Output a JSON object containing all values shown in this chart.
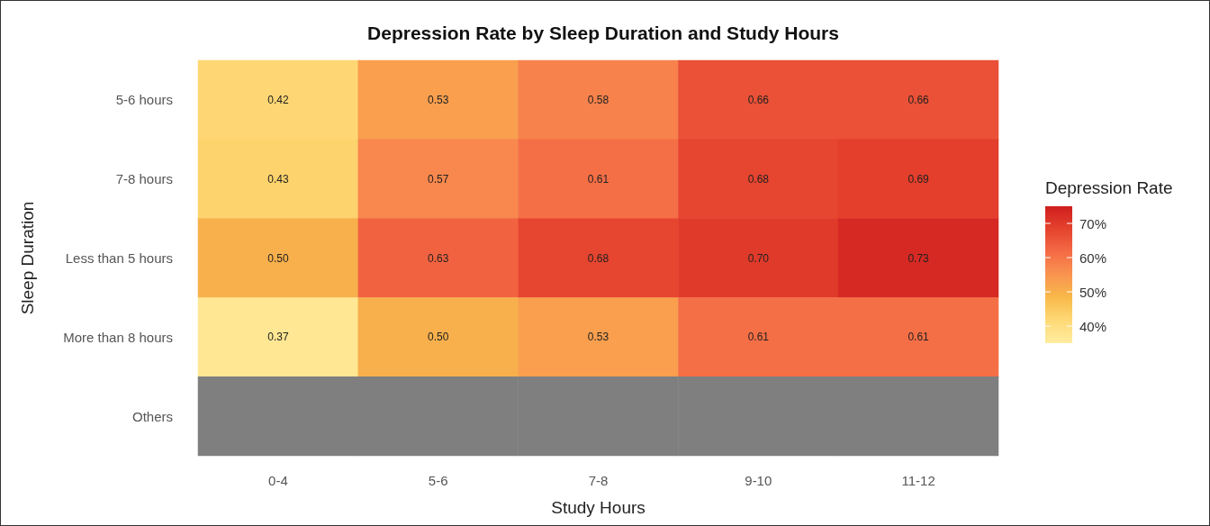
{
  "chart_data": {
    "type": "heatmap",
    "title": "Depression Rate by Sleep Duration and Study Hours",
    "xlabel": "Study Hours",
    "ylabel": "Sleep Duration",
    "clabel": "Depression Rate",
    "categories": [
      "0-4",
      "5-6",
      "7-8",
      "9-10",
      "11-12"
    ],
    "y_categories": [
      "5-6 hours",
      "7-8 hours",
      "Less than 5 hours",
      "More than 8 hours",
      "Others"
    ],
    "cells": [
      [
        0.42,
        0.53,
        0.58,
        0.66,
        0.66
      ],
      [
        0.43,
        0.57,
        0.61,
        0.68,
        0.69
      ],
      [
        0.5,
        0.63,
        0.68,
        0.7,
        0.73
      ],
      [
        0.37,
        0.5,
        0.53,
        0.61,
        0.61
      ],
      [
        null,
        null,
        null,
        null,
        null
      ]
    ],
    "cell_labels": [
      [
        "0.42",
        "0.53",
        "0.58",
        "0.66",
        "0.66"
      ],
      [
        "0.43",
        "0.57",
        "0.61",
        "0.68",
        "0.69"
      ],
      [
        "0.50",
        "0.63",
        "0.68",
        "0.70",
        "0.73"
      ],
      [
        "0.37",
        "0.50",
        "0.53",
        "0.61",
        "0.61"
      ],
      [
        null,
        null,
        null,
        null,
        null
      ]
    ],
    "clim": [
      0.35,
      0.75
    ],
    "cticks": [
      {
        "value": 0.4,
        "label": "40%"
      },
      {
        "value": 0.5,
        "label": "50%"
      },
      {
        "value": 0.6,
        "label": "60%"
      },
      {
        "value": 0.7,
        "label": "70%"
      }
    ]
  }
}
